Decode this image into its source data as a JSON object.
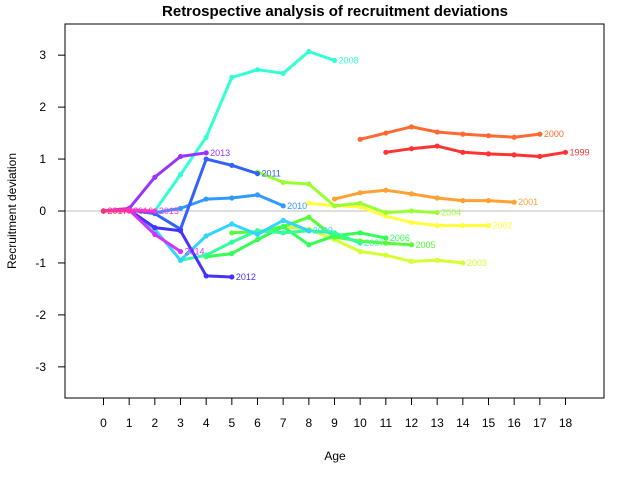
{
  "chart_data": {
    "type": "line",
    "title": "Retrospective analysis of recruitment deviations",
    "xlabel": "Age",
    "ylabel": "Recruitment deviation",
    "x_ticks": [
      0,
      1,
      2,
      3,
      4,
      5,
      6,
      7,
      8,
      9,
      10,
      11,
      12,
      13,
      14,
      15,
      16,
      17,
      18
    ],
    "y_ticks": [
      -3,
      -2,
      -1,
      0,
      1,
      2,
      3
    ],
    "xlim": [
      -1.5,
      19.5
    ],
    "ylim": [
      -3.6,
      3.6
    ],
    "reference_line_y": 0,
    "reference_line_color": "#bebebe",
    "grid": false,
    "legend": "none",
    "series": [
      {
        "name": "1999",
        "color": "#ff3333",
        "x": [
          11,
          12,
          13,
          14,
          15,
          16,
          17,
          18
        ],
        "y": [
          1.13,
          1.2,
          1.25,
          1.13,
          1.1,
          1.08,
          1.05,
          1.13
        ]
      },
      {
        "name": "2000",
        "color": "#ff6a33",
        "x": [
          10,
          11,
          12,
          13,
          14,
          15,
          16,
          17
        ],
        "y": [
          1.38,
          1.5,
          1.62,
          1.52,
          1.48,
          1.45,
          1.42,
          1.48
        ]
      },
      {
        "name": "2001",
        "color": "#ffa133",
        "x": [
          9,
          10,
          11,
          12,
          13,
          14,
          15,
          16
        ],
        "y": [
          0.23,
          0.35,
          0.4,
          0.33,
          0.25,
          0.2,
          0.2,
          0.17
        ]
      },
      {
        "name": "2002",
        "color": "#ffff40",
        "x": [
          8,
          9,
          10,
          11,
          12,
          13,
          14,
          15
        ],
        "y": [
          0.15,
          0.1,
          0.08,
          -0.1,
          -0.22,
          -0.28,
          -0.28,
          -0.28
        ]
      },
      {
        "name": "2003",
        "color": "#d4ff33",
        "x": [
          7,
          8,
          9,
          10,
          11,
          12,
          13,
          14
        ],
        "y": [
          -0.3,
          -0.35,
          -0.55,
          -0.78,
          -0.85,
          -0.97,
          -0.95,
          -1.0
        ]
      },
      {
        "name": "2004",
        "color": "#99ff33",
        "x": [
          6,
          7,
          8,
          9,
          10,
          11,
          12,
          13
        ],
        "y": [
          0.75,
          0.55,
          0.52,
          0.1,
          0.15,
          -0.03,
          0.0,
          -0.03
        ]
      },
      {
        "name": "2005",
        "color": "#55ff33",
        "x": [
          5,
          6,
          7,
          8,
          9,
          10,
          11,
          12
        ],
        "y": [
          -0.42,
          -0.4,
          -0.3,
          -0.12,
          -0.5,
          -0.58,
          -0.62,
          -0.65
        ]
      },
      {
        "name": "2006",
        "color": "#33ff55",
        "x": [
          4,
          5,
          6,
          7,
          8,
          9,
          10,
          11
        ],
        "y": [
          -0.88,
          -0.82,
          -0.55,
          -0.3,
          -0.65,
          -0.48,
          -0.42,
          -0.52
        ]
      },
      {
        "name": "2007",
        "color": "#33ff99",
        "x": [
          3,
          4,
          5,
          6,
          7,
          8,
          9,
          10
        ],
        "y": [
          -0.95,
          -0.85,
          -0.6,
          -0.38,
          -0.42,
          -0.38,
          -0.42,
          -0.62
        ]
      },
      {
        "name": "2008",
        "color": "#33ffd4",
        "x": [
          2,
          3,
          4,
          5,
          6,
          7,
          8,
          9
        ],
        "y": [
          0.0,
          0.7,
          1.42,
          2.57,
          2.72,
          2.65,
          3.07,
          2.9
        ]
      },
      {
        "name": "2009",
        "color": "#33d4ff",
        "x": [
          1,
          2,
          3,
          4,
          5,
          6,
          7,
          8
        ],
        "y": [
          0.02,
          -0.35,
          -0.95,
          -0.48,
          -0.25,
          -0.45,
          -0.18,
          -0.38
        ]
      },
      {
        "name": "2010",
        "color": "#3399ff",
        "x": [
          0,
          1,
          2,
          3,
          4,
          5,
          6,
          7
        ],
        "y": [
          0.0,
          0.02,
          -0.03,
          0.05,
          0.23,
          0.25,
          0.31,
          0.1
        ]
      },
      {
        "name": "2011",
        "color": "#3361ff",
        "x": [
          0,
          1,
          2,
          3,
          4,
          5,
          6
        ],
        "y": [
          0.0,
          0.02,
          -0.05,
          -0.35,
          1.0,
          0.88,
          0.72
        ]
      },
      {
        "name": "2012",
        "color": "#4433ff",
        "x": [
          0,
          1,
          2,
          3,
          4,
          5
        ],
        "y": [
          0.0,
          0.02,
          -0.32,
          -0.38,
          -1.25,
          -1.27
        ]
      },
      {
        "name": "2013",
        "color": "#9933ff",
        "x": [
          0,
          1,
          2,
          3,
          4
        ],
        "y": [
          0.0,
          0.05,
          0.65,
          1.05,
          1.12
        ]
      },
      {
        "name": "2014",
        "color": "#d433ff",
        "x": [
          0,
          1,
          2,
          3
        ],
        "y": [
          0.0,
          0.02,
          -0.45,
          -0.78
        ]
      },
      {
        "name": "2015",
        "color": "#ff33dd",
        "x": [
          0,
          1,
          2
        ],
        "y": [
          0.0,
          0.02,
          0.0
        ]
      },
      {
        "name": "2016",
        "color": "#ff33a1",
        "x": [
          0,
          1
        ],
        "y": [
          0.0,
          0.0
        ]
      },
      {
        "name": "2017",
        "color": "#ff3366",
        "x": [
          0
        ],
        "y": [
          0.0
        ]
      }
    ]
  }
}
